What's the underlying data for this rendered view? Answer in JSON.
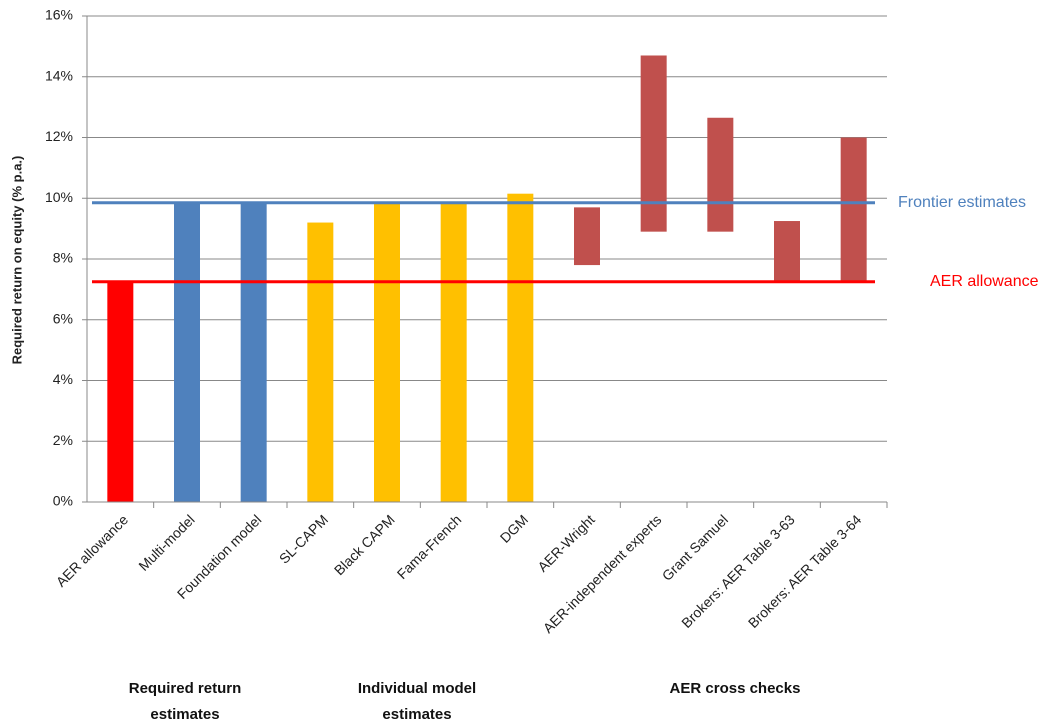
{
  "chart_data": {
    "type": "floating_bar",
    "y_label": "Required return on equity (% p.a.)",
    "categories": [
      "AER allowance",
      "Multi-model",
      "Foundation model",
      "SL-CAPM",
      "Black CAPM",
      "Fama-French",
      "DGM",
      "AER-Wright",
      "AER-independent experts",
      "Grant Samuel",
      "Brokers: AER Table 3-63",
      "Brokers: AER Table 3-64"
    ],
    "values": [
      7.25,
      9.85,
      9.85,
      9.2,
      9.85,
      9.85,
      10.15,
      null,
      null,
      null,
      null,
      null
    ],
    "range_low": [
      null,
      null,
      null,
      null,
      null,
      null,
      null,
      7.8,
      8.9,
      8.9,
      7.25,
      7.25
    ],
    "range_high": [
      null,
      null,
      null,
      null,
      null,
      null,
      null,
      9.7,
      14.7,
      12.65,
      9.25,
      12.0
    ],
    "colors": [
      "#ff0000",
      "#4f81bd",
      "#4f81bd",
      "#ffc000",
      "#ffc000",
      "#ffc000",
      "#ffc000",
      "#c0504d",
      "#c0504d",
      "#c0504d",
      "#c0504d",
      "#c0504d"
    ],
    "reference_lines": [
      {
        "label": "Frontier estimates",
        "value": 9.85,
        "color": "#4f81bd"
      },
      {
        "label": "AER allowance",
        "value": 7.25,
        "color": "#ff0000"
      }
    ],
    "groups": [
      "Required return estimates",
      "Individual model estimates",
      "AER cross checks"
    ],
    "ylim": [
      0,
      16
    ],
    "yticks": [
      {
        "value": 0,
        "label": "0%"
      },
      {
        "value": 2,
        "label": "2%"
      },
      {
        "value": 4,
        "label": "4%"
      },
      {
        "value": 6,
        "label": "6%"
      },
      {
        "value": 8,
        "label": "8%"
      },
      {
        "value": 10,
        "label": "10%"
      },
      {
        "value": 12,
        "label": "12%"
      },
      {
        "value": 14,
        "label": "14%"
      },
      {
        "value": 16,
        "label": "16%"
      }
    ],
    "grid": true
  }
}
